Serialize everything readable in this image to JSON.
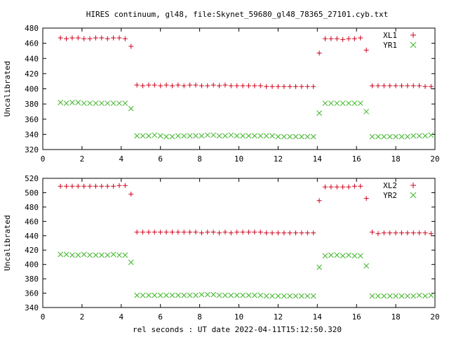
{
  "figure": {
    "title": "HIRES continuum, gl48, file:Skynet_59680_gl48_78365_27101.cyb.txt"
  },
  "chart_data": [
    {
      "type": "scatter",
      "title": "HIRES continuum, gl48, file:Skynet_59680_gl48_78365_27101.cyb.txt",
      "xlabel": "",
      "ylabel": "Uncalibrated",
      "xlim": [
        0,
        20
      ],
      "ylim": [
        320,
        480
      ],
      "xticks": [
        0,
        2,
        4,
        6,
        8,
        10,
        12,
        14,
        16,
        18,
        20
      ],
      "yticks": [
        320,
        340,
        360,
        380,
        400,
        420,
        440,
        460,
        480
      ],
      "legend": "top-right",
      "grid": false,
      "series": [
        {
          "name": "XL1",
          "marker": "plus",
          "color": "#d0021b",
          "x": [
            0.9,
            1.2,
            1.5,
            1.8,
            2.1,
            2.4,
            2.7,
            3.0,
            3.3,
            3.6,
            3.9,
            4.2,
            4.5,
            4.8,
            5.1,
            5.4,
            5.7,
            6.0,
            6.3,
            6.6,
            6.9,
            7.2,
            7.5,
            7.8,
            8.1,
            8.4,
            8.7,
            9.0,
            9.3,
            9.6,
            9.9,
            10.2,
            10.5,
            10.8,
            11.1,
            11.4,
            11.7,
            12.0,
            12.3,
            12.6,
            12.9,
            13.2,
            13.5,
            13.8,
            14.1,
            14.4,
            14.7,
            15.0,
            15.3,
            15.6,
            15.9,
            16.2,
            16.5,
            16.8,
            17.1,
            17.4,
            17.7,
            18.0,
            18.3,
            18.6,
            18.9,
            19.2,
            19.5,
            19.8
          ],
          "y": [
            467,
            466,
            467,
            467,
            466,
            466,
            467,
            467,
            466,
            467,
            467,
            466,
            456,
            405,
            404,
            405,
            405,
            404,
            405,
            404,
            405,
            404,
            405,
            405,
            404,
            404,
            405,
            404,
            405,
            404,
            404,
            404,
            404,
            404,
            404,
            403,
            403,
            403,
            403,
            403,
            403,
            403,
            403,
            403,
            447,
            466,
            466,
            466,
            465,
            466,
            466,
            467,
            451,
            404,
            404,
            404,
            404,
            404,
            404,
            404,
            404,
            404,
            403,
            403
          ],
          "y_note": ""
        },
        {
          "name": "YR1",
          "marker": "cross",
          "color": "#3cb526",
          "x": [
            0.9,
            1.2,
            1.5,
            1.8,
            2.1,
            2.4,
            2.7,
            3.0,
            3.3,
            3.6,
            3.9,
            4.2,
            4.5,
            4.8,
            5.1,
            5.4,
            5.7,
            6.0,
            6.3,
            6.6,
            6.9,
            7.2,
            7.5,
            7.8,
            8.1,
            8.4,
            8.7,
            9.0,
            9.3,
            9.6,
            9.9,
            10.2,
            10.5,
            10.8,
            11.1,
            11.4,
            11.7,
            12.0,
            12.3,
            12.6,
            12.9,
            13.2,
            13.5,
            13.8,
            14.1,
            14.4,
            14.7,
            15.0,
            15.3,
            15.6,
            15.9,
            16.2,
            16.5,
            16.8,
            17.1,
            17.4,
            17.7,
            18.0,
            18.3,
            18.6,
            18.9,
            19.2,
            19.5,
            19.8
          ],
          "y": [
            382,
            381,
            382,
            382,
            381,
            381,
            381,
            381,
            381,
            381,
            381,
            381,
            374,
            338,
            338,
            338,
            339,
            338,
            337,
            337,
            338,
            338,
            338,
            338,
            338,
            339,
            339,
            338,
            338,
            339,
            338,
            338,
            338,
            338,
            338,
            338,
            338,
            337,
            337,
            337,
            337,
            337,
            337,
            337,
            368,
            381,
            381,
            381,
            381,
            381,
            381,
            381,
            370,
            337,
            337,
            337,
            337,
            337,
            337,
            337,
            338,
            338,
            338,
            339
          ]
        }
      ]
    },
    {
      "type": "scatter",
      "title": "",
      "xlabel": "rel seconds : UT date 2022-04-11T15:12:50.320",
      "ylabel": "Uncalibrated",
      "xlim": [
        0,
        20
      ],
      "ylim": [
        340,
        520
      ],
      "xticks": [
        0,
        2,
        4,
        6,
        8,
        10,
        12,
        14,
        16,
        18,
        20
      ],
      "yticks": [
        340,
        360,
        380,
        400,
        420,
        440,
        460,
        480,
        500,
        520
      ],
      "legend": "top-right",
      "grid": false,
      "series": [
        {
          "name": "XL2",
          "marker": "plus",
          "color": "#d0021b",
          "x": [
            0.9,
            1.2,
            1.5,
            1.8,
            2.1,
            2.4,
            2.7,
            3.0,
            3.3,
            3.6,
            3.9,
            4.2,
            4.5,
            4.8,
            5.1,
            5.4,
            5.7,
            6.0,
            6.3,
            6.6,
            6.9,
            7.2,
            7.5,
            7.8,
            8.1,
            8.4,
            8.7,
            9.0,
            9.3,
            9.6,
            9.9,
            10.2,
            10.5,
            10.8,
            11.1,
            11.4,
            11.7,
            12.0,
            12.3,
            12.6,
            12.9,
            13.2,
            13.5,
            13.8,
            14.1,
            14.4,
            14.7,
            15.0,
            15.3,
            15.6,
            15.9,
            16.2,
            16.5,
            16.8,
            17.1,
            17.4,
            17.7,
            18.0,
            18.3,
            18.6,
            18.9,
            19.2,
            19.5,
            19.8
          ],
          "y": [
            509,
            509,
            509,
            509,
            509,
            509,
            509,
            509,
            509,
            509,
            510,
            510,
            498,
            445,
            445,
            445,
            445,
            445,
            445,
            445,
            445,
            445,
            445,
            445,
            444,
            445,
            445,
            444,
            445,
            444,
            445,
            445,
            445,
            445,
            445,
            444,
            444,
            444,
            444,
            444,
            444,
            444,
            444,
            444,
            489,
            508,
            508,
            508,
            508,
            508,
            509,
            509,
            492,
            445,
            443,
            444,
            444,
            444,
            444,
            444,
            444,
            444,
            444,
            443
          ]
        },
        {
          "name": "YR2",
          "marker": "cross",
          "color": "#3cb526",
          "x": [
            0.9,
            1.2,
            1.5,
            1.8,
            2.1,
            2.4,
            2.7,
            3.0,
            3.3,
            3.6,
            3.9,
            4.2,
            4.5,
            4.8,
            5.1,
            5.4,
            5.7,
            6.0,
            6.3,
            6.6,
            6.9,
            7.2,
            7.5,
            7.8,
            8.1,
            8.4,
            8.7,
            9.0,
            9.3,
            9.6,
            9.9,
            10.2,
            10.5,
            10.8,
            11.1,
            11.4,
            11.7,
            12.0,
            12.3,
            12.6,
            12.9,
            13.2,
            13.5,
            13.8,
            14.1,
            14.4,
            14.7,
            15.0,
            15.3,
            15.6,
            15.9,
            16.2,
            16.5,
            16.8,
            17.1,
            17.4,
            17.7,
            18.0,
            18.3,
            18.6,
            18.9,
            19.2,
            19.5,
            19.8
          ],
          "y": [
            414,
            414,
            413,
            413,
            414,
            413,
            413,
            413,
            413,
            414,
            413,
            413,
            403,
            357,
            357,
            357,
            357,
            357,
            357,
            357,
            357,
            357,
            357,
            357,
            358,
            358,
            358,
            357,
            357,
            357,
            357,
            357,
            357,
            357,
            357,
            356,
            356,
            356,
            356,
            356,
            356,
            356,
            356,
            356,
            396,
            412,
            413,
            413,
            412,
            413,
            412,
            412,
            398,
            356,
            356,
            356,
            356,
            356,
            356,
            356,
            356,
            357,
            356,
            357
          ]
        }
      ]
    }
  ]
}
